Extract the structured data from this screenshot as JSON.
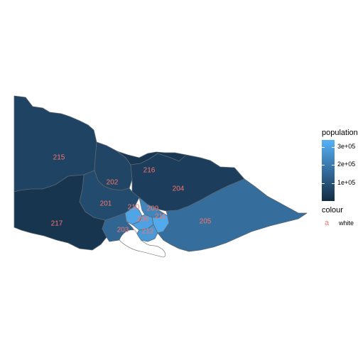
{
  "chart_data": {
    "type": "map",
    "title": "",
    "regions": [
      {
        "label": "215",
        "population": 60000
      },
      {
        "label": "202",
        "population": 65000
      },
      {
        "label": "216",
        "population": 30000
      },
      {
        "label": "204",
        "population": 45000
      },
      {
        "label": "201",
        "population": 80000
      },
      {
        "label": "217",
        "population": 25000
      },
      {
        "label": "210",
        "population": 310000
      },
      {
        "label": "209",
        "population": 230000
      },
      {
        "label": "206",
        "population": 300000
      },
      {
        "label": "211",
        "population": 320000
      },
      {
        "label": "203",
        "population": 150000
      },
      {
        "label": "212",
        "population": 280000
      },
      {
        "label": "205",
        "population": 170000
      }
    ],
    "legend_position": "right",
    "population_legend": {
      "title": "population",
      "breaks": [
        100000,
        200000,
        300000
      ],
      "labels": [
        "1e+05",
        "2e+05",
        "3e+05"
      ],
      "low_color": "#132B43",
      "high_color": "#56B1F7",
      "range": [
        0,
        340000
      ]
    },
    "colour_legend": {
      "title": "colour",
      "key_glyph": "a",
      "key_label": "white",
      "key_color": "#F8766D"
    },
    "label_color": "#F8766D"
  }
}
